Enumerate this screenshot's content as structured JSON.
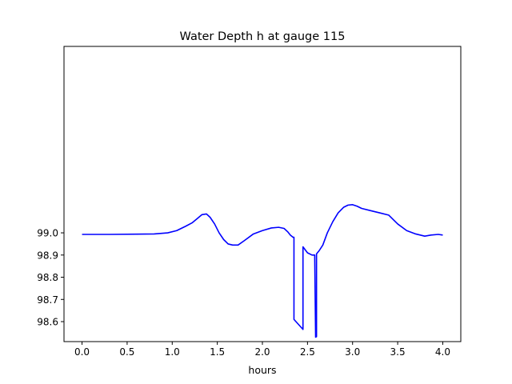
{
  "chart_data": {
    "type": "line",
    "title": "Water Depth h at gauge 115",
    "xlabel": "hours",
    "ylabel": "",
    "xlim": [
      -0.2,
      4.2
    ],
    "ylim": [
      98.51,
      99.84
    ],
    "x_ticks": [
      0.0,
      0.5,
      1.0,
      1.5,
      2.0,
      2.5,
      3.0,
      3.5,
      4.0
    ],
    "x_tick_labels": [
      "0.0",
      "0.5",
      "1.0",
      "1.5",
      "2.0",
      "2.5",
      "3.0",
      "3.5",
      "4.0"
    ],
    "y_ticks": [
      98.6,
      98.7,
      98.8,
      98.9,
      99.0
    ],
    "y_tick_labels": [
      "98.6",
      "98.7",
      "98.8",
      "98.9",
      "99.0"
    ],
    "grid": false,
    "series": [
      {
        "color": "#0000ff",
        "x": [
          0.0,
          0.3,
          0.6,
          0.8,
          0.95,
          1.05,
          1.15,
          1.22,
          1.28,
          1.33,
          1.38,
          1.42,
          1.47,
          1.52,
          1.57,
          1.62,
          1.67,
          1.73,
          1.8,
          1.9,
          2.0,
          2.1,
          2.18,
          2.24,
          2.28,
          2.31,
          2.34,
          2.35,
          2.35,
          2.45,
          2.45,
          2.5,
          2.55,
          2.58,
          2.59,
          2.6,
          2.6,
          2.63,
          2.67,
          2.72,
          2.78,
          2.84,
          2.9,
          2.95,
          3.0,
          3.05,
          3.1,
          3.2,
          3.3,
          3.4,
          3.5,
          3.6,
          3.7,
          3.8,
          3.87,
          3.95,
          4.0
        ],
        "y": [
          98.993,
          98.993,
          98.994,
          98.995,
          99.0,
          99.01,
          99.03,
          99.045,
          99.065,
          99.082,
          99.085,
          99.07,
          99.04,
          99.0,
          98.97,
          98.95,
          98.945,
          98.945,
          98.965,
          98.995,
          99.01,
          99.022,
          99.025,
          99.02,
          99.005,
          98.99,
          98.98,
          98.98,
          98.61,
          98.565,
          98.937,
          98.91,
          98.9,
          98.9,
          98.53,
          98.532,
          98.905,
          98.92,
          98.945,
          99.0,
          99.05,
          99.09,
          99.115,
          99.125,
          99.127,
          99.12,
          99.11,
          99.1,
          99.09,
          99.08,
          99.04,
          99.01,
          98.995,
          98.985,
          98.99,
          98.993,
          98.99
        ]
      }
    ]
  }
}
